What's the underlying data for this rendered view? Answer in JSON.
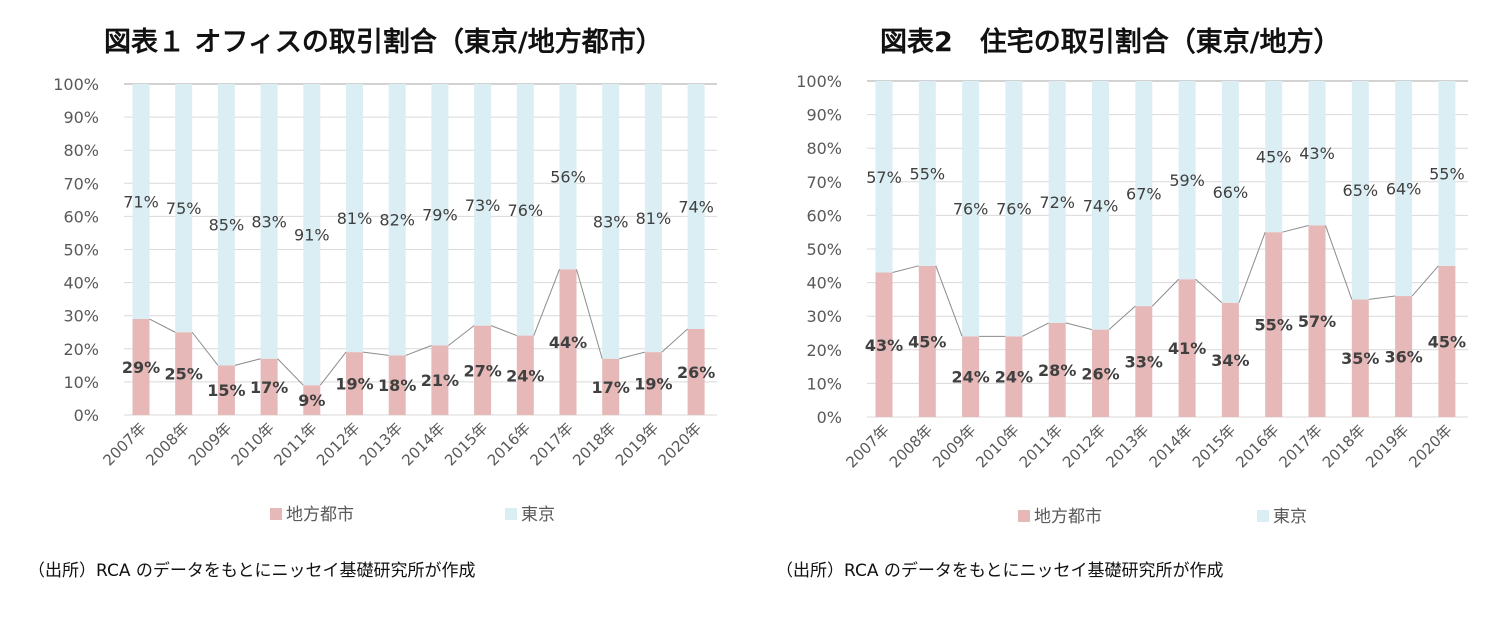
{
  "colors": {
    "local": "#e6b8b7",
    "tokyo": "#daeef3",
    "grid": "#d9d9d9",
    "connector": "#8c8c8c"
  },
  "chart_data": [
    {
      "type": "bar",
      "stacked": true,
      "title": "図表１ オフィスの取引割合（東京/地方都市）",
      "source": "（出所）RCA のデータをもとにニッセイ基礎研究所が作成",
      "categories": [
        "2007年",
        "2008年",
        "2009年",
        "2010年",
        "2011年",
        "2012年",
        "2013年",
        "2014年",
        "2015年",
        "2016年",
        "2017年",
        "2018年",
        "2019年",
        "2020年"
      ],
      "series": [
        {
          "name": "地方都市",
          "values": [
            29,
            25,
            15,
            17,
            9,
            19,
            18,
            21,
            27,
            24,
            44,
            17,
            19,
            26
          ]
        },
        {
          "name": "東京",
          "values": [
            71,
            75,
            85,
            83,
            91,
            81,
            82,
            79,
            73,
            76,
            56,
            83,
            81,
            74
          ]
        }
      ],
      "yticks": [
        "0%",
        "10%",
        "20%",
        "30%",
        "40%",
        "50%",
        "60%",
        "70%",
        "80%",
        "90%",
        "100%"
      ],
      "ylim": [
        0,
        100
      ],
      "grid": true,
      "legend": "bottom"
    },
    {
      "type": "bar",
      "stacked": true,
      "title": "図表2　住宅の取引割合（東京/地方）",
      "source": "（出所）RCA のデータをもとにニッセイ基礎研究所が作成",
      "categories": [
        "2007年",
        "2008年",
        "2009年",
        "2010年",
        "2011年",
        "2012年",
        "2013年",
        "2014年",
        "2015年",
        "2016年",
        "2017年",
        "2018年",
        "2019年",
        "2020年"
      ],
      "series": [
        {
          "name": "地方都市",
          "values": [
            43,
            45,
            24,
            24,
            28,
            26,
            33,
            41,
            34,
            55,
            57,
            35,
            36,
            45
          ]
        },
        {
          "name": "東京",
          "values": [
            57,
            55,
            76,
            76,
            72,
            74,
            67,
            59,
            66,
            45,
            43,
            65,
            64,
            55
          ]
        }
      ],
      "yticks": [
        "0%",
        "10%",
        "20%",
        "30%",
        "40%",
        "50%",
        "60%",
        "70%",
        "80%",
        "90%",
        "100%"
      ],
      "ylim": [
        0,
        100
      ],
      "grid": true,
      "legend": "bottom"
    }
  ]
}
